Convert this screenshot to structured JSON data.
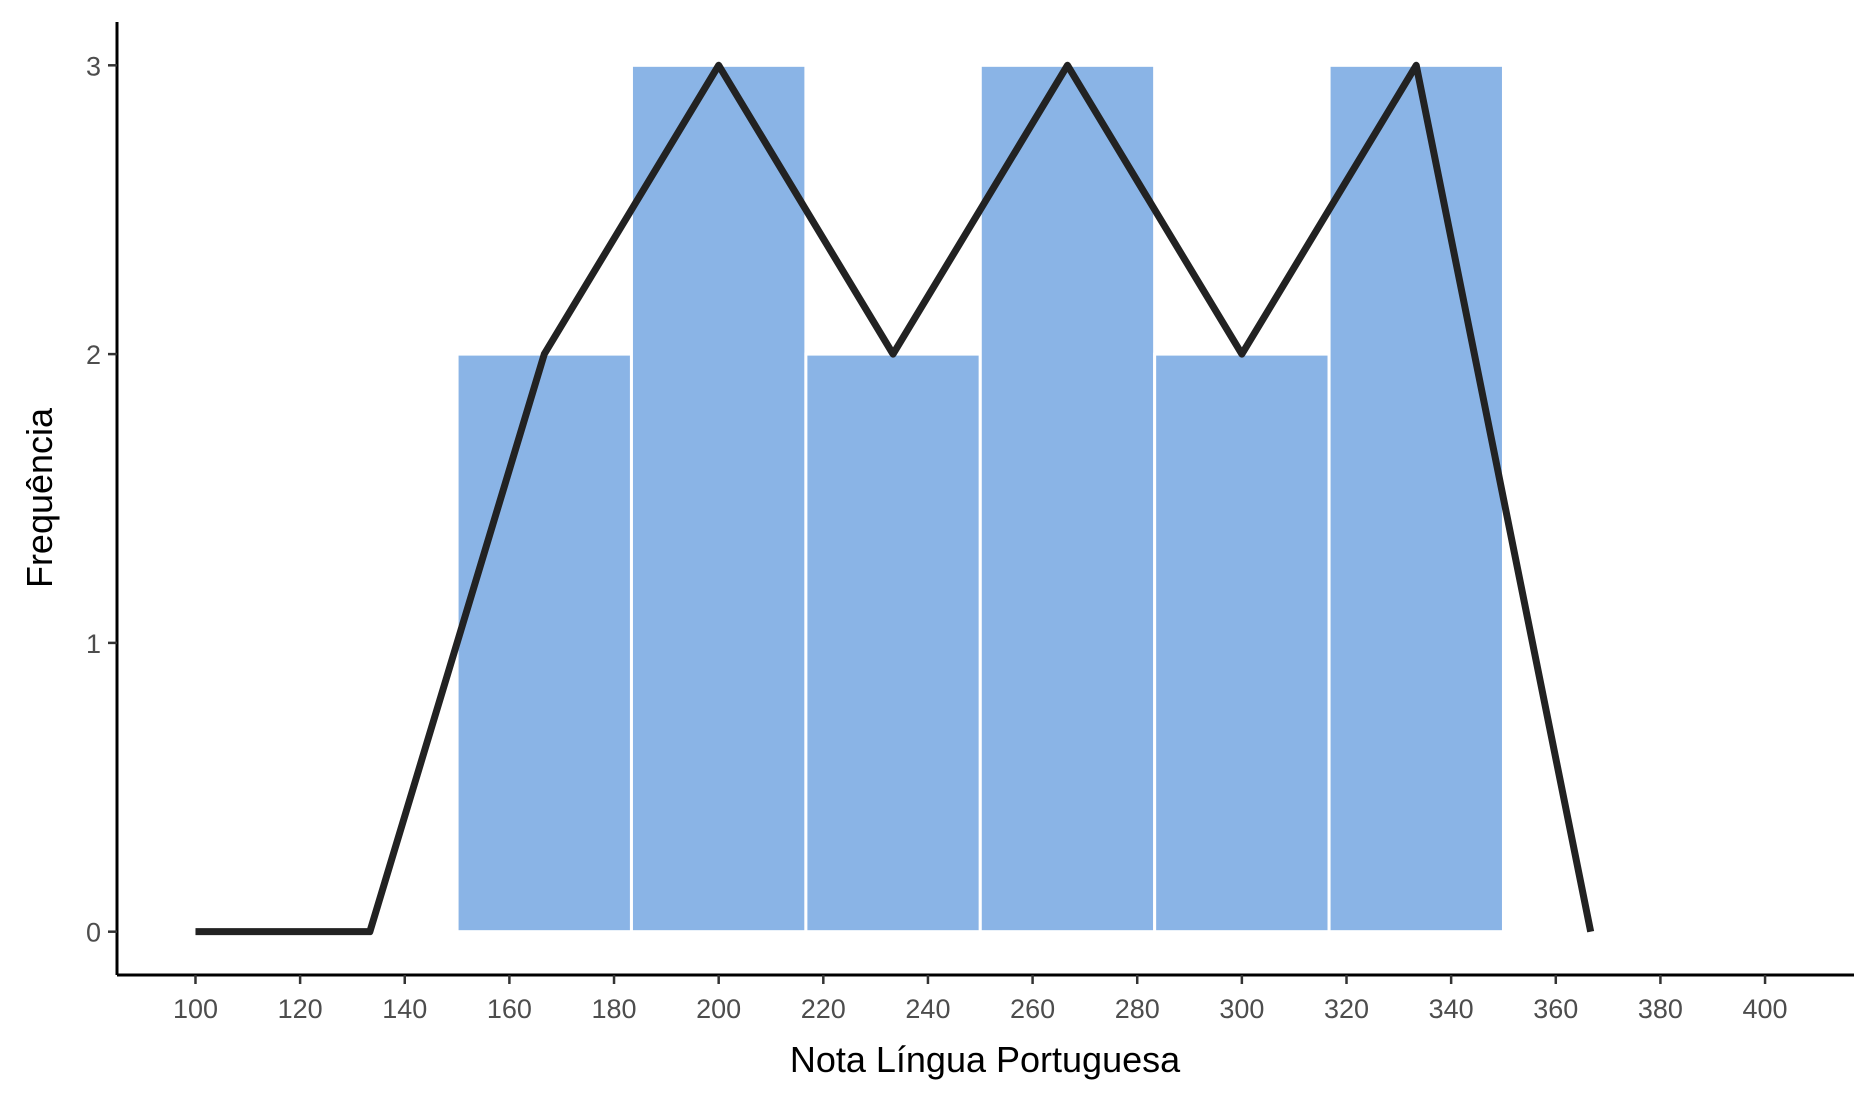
{
  "chart_data": {
    "type": "bar",
    "xlabel": "Nota Língua Portuguesa",
    "ylabel": "Frequência",
    "xlim": [
      85,
      417
    ],
    "ylim": [
      -0.15,
      3.15
    ],
    "x_ticks": [
      100,
      120,
      140,
      160,
      180,
      200,
      220,
      240,
      260,
      280,
      300,
      320,
      340,
      360,
      380,
      400
    ],
    "y_ticks": [
      0,
      1,
      2,
      3
    ],
    "histogram": {
      "bin_edges": [
        150,
        183.33,
        216.67,
        250,
        283.33,
        316.67,
        350
      ],
      "counts": [
        2,
        3,
        2,
        3,
        2,
        3
      ],
      "color": "#8ab4e6",
      "border_color": "#ffffff"
    },
    "frequency_polygon": {
      "x": [
        100,
        133.33,
        166.67,
        200,
        233.33,
        266.67,
        300,
        333.33,
        366.67
      ],
      "y": [
        0,
        0,
        2,
        3,
        2,
        3,
        2,
        3,
        0
      ],
      "color": "#222222"
    },
    "grid": false,
    "legend": "none"
  }
}
